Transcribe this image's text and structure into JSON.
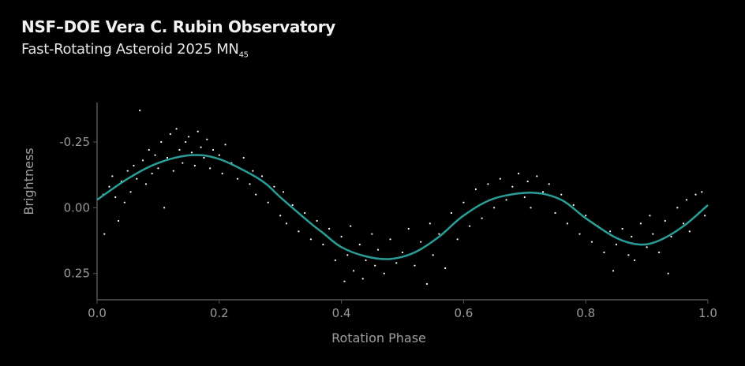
{
  "header": {
    "title": "NSF–DOE Vera C. Rubin Observatory",
    "subtitle_main": "Fast-Rotating Asteroid 2025 MN",
    "subtitle_sub": "45"
  },
  "chart_data": {
    "type": "scatter",
    "xlabel": "Rotation Phase",
    "ylabel": "Brightness",
    "xlim": [
      0.0,
      1.0
    ],
    "ylim": [
      0.35,
      -0.4
    ],
    "y_inverted": true,
    "xticks": [
      "0.0",
      "0.2",
      "0.4",
      "0.6",
      "0.8",
      "1.0"
    ],
    "xtick_values": [
      0.0,
      0.2,
      0.4,
      0.6,
      0.8,
      1.0
    ],
    "yticks": [
      "-0.25",
      "0.00",
      "0.25"
    ],
    "ytick_values": [
      -0.25,
      0.0,
      0.25
    ],
    "grid": false,
    "colors": {
      "points": "#ffffff",
      "fit_curve": "#2a9d98",
      "axes": "#555555",
      "background": "#000000"
    },
    "fit_curve": [
      [
        0.0,
        -0.03
      ],
      [
        0.05,
        -0.11
      ],
      [
        0.1,
        -0.17
      ],
      [
        0.155,
        -0.2
      ],
      [
        0.2,
        -0.185
      ],
      [
        0.25,
        -0.13
      ],
      [
        0.277,
        -0.09
      ],
      [
        0.3,
        -0.04
      ],
      [
        0.35,
        0.06
      ],
      [
        0.37,
        0.096
      ],
      [
        0.4,
        0.15
      ],
      [
        0.44,
        0.185
      ],
      [
        0.48,
        0.195
      ],
      [
        0.52,
        0.17
      ],
      [
        0.56,
        0.11
      ],
      [
        0.6,
        0.03
      ],
      [
        0.65,
        -0.035
      ],
      [
        0.713,
        -0.057
      ],
      [
        0.76,
        -0.03
      ],
      [
        0.8,
        0.04
      ],
      [
        0.85,
        0.115
      ],
      [
        0.888,
        0.14
      ],
      [
        0.92,
        0.125
      ],
      [
        0.96,
        0.07
      ],
      [
        1.0,
        -0.01
      ]
    ],
    "points": [
      [
        0.01,
        -0.05
      ],
      [
        0.012,
        0.1
      ],
      [
        0.02,
        -0.08
      ],
      [
        0.025,
        -0.12
      ],
      [
        0.03,
        -0.04
      ],
      [
        0.035,
        0.05
      ],
      [
        0.04,
        -0.1
      ],
      [
        0.045,
        -0.02
      ],
      [
        0.05,
        -0.14
      ],
      [
        0.055,
        -0.06
      ],
      [
        0.06,
        -0.16
      ],
      [
        0.065,
        -0.11
      ],
      [
        0.07,
        -0.37
      ],
      [
        0.075,
        -0.18
      ],
      [
        0.08,
        -0.09
      ],
      [
        0.085,
        -0.22
      ],
      [
        0.09,
        -0.13
      ],
      [
        0.095,
        -0.2
      ],
      [
        0.1,
        -0.15
      ],
      [
        0.105,
        -0.25
      ],
      [
        0.11,
        0.0
      ],
      [
        0.115,
        -0.19
      ],
      [
        0.12,
        -0.28
      ],
      [
        0.125,
        -0.14
      ],
      [
        0.13,
        -0.3
      ],
      [
        0.135,
        -0.22
      ],
      [
        0.14,
        -0.17
      ],
      [
        0.145,
        -0.25
      ],
      [
        0.15,
        -0.27
      ],
      [
        0.155,
        -0.21
      ],
      [
        0.16,
        -0.16
      ],
      [
        0.165,
        -0.29
      ],
      [
        0.17,
        -0.23
      ],
      [
        0.175,
        -0.19
      ],
      [
        0.18,
        -0.26
      ],
      [
        0.185,
        -0.15
      ],
      [
        0.19,
        -0.22
      ],
      [
        0.2,
        -0.2
      ],
      [
        0.205,
        -0.13
      ],
      [
        0.21,
        -0.24
      ],
      [
        0.22,
        -0.17
      ],
      [
        0.23,
        -0.11
      ],
      [
        0.24,
        -0.19
      ],
      [
        0.25,
        -0.09
      ],
      [
        0.255,
        -0.14
      ],
      [
        0.26,
        -0.05
      ],
      [
        0.27,
        -0.12
      ],
      [
        0.28,
        -0.02
      ],
      [
        0.29,
        -0.08
      ],
      [
        0.3,
        0.03
      ],
      [
        0.305,
        -0.06
      ],
      [
        0.31,
        0.06
      ],
      [
        0.32,
        -0.01
      ],
      [
        0.33,
        0.09
      ],
      [
        0.34,
        0.02
      ],
      [
        0.35,
        0.12
      ],
      [
        0.36,
        0.05
      ],
      [
        0.37,
        0.14
      ],
      [
        0.38,
        0.08
      ],
      [
        0.39,
        0.2
      ],
      [
        0.4,
        0.11
      ],
      [
        0.405,
        0.28
      ],
      [
        0.41,
        0.18
      ],
      [
        0.415,
        0.07
      ],
      [
        0.42,
        0.24
      ],
      [
        0.43,
        0.14
      ],
      [
        0.435,
        0.27
      ],
      [
        0.44,
        0.2
      ],
      [
        0.45,
        0.1
      ],
      [
        0.455,
        0.22
      ],
      [
        0.46,
        0.16
      ],
      [
        0.47,
        0.25
      ],
      [
        0.48,
        0.12
      ],
      [
        0.49,
        0.21
      ],
      [
        0.5,
        0.17
      ],
      [
        0.51,
        0.08
      ],
      [
        0.52,
        0.22
      ],
      [
        0.53,
        0.13
      ],
      [
        0.54,
        0.29
      ],
      [
        0.545,
        0.06
      ],
      [
        0.55,
        0.18
      ],
      [
        0.56,
        0.1
      ],
      [
        0.57,
        0.23
      ],
      [
        0.58,
        0.02
      ],
      [
        0.59,
        0.12
      ],
      [
        0.6,
        -0.02
      ],
      [
        0.61,
        0.07
      ],
      [
        0.62,
        -0.07
      ],
      [
        0.63,
        0.04
      ],
      [
        0.64,
        -0.09
      ],
      [
        0.65,
        0.0
      ],
      [
        0.66,
        -0.11
      ],
      [
        0.67,
        -0.03
      ],
      [
        0.68,
        -0.08
      ],
      [
        0.69,
        -0.13
      ],
      [
        0.7,
        -0.04
      ],
      [
        0.705,
        -0.1
      ],
      [
        0.71,
        0.0
      ],
      [
        0.72,
        -0.12
      ],
      [
        0.73,
        -0.06
      ],
      [
        0.74,
        -0.09
      ],
      [
        0.75,
        0.02
      ],
      [
        0.76,
        -0.05
      ],
      [
        0.77,
        0.06
      ],
      [
        0.78,
        -0.01
      ],
      [
        0.79,
        0.1
      ],
      [
        0.8,
        0.03
      ],
      [
        0.81,
        0.13
      ],
      [
        0.82,
        0.07
      ],
      [
        0.83,
        0.17
      ],
      [
        0.84,
        0.09
      ],
      [
        0.845,
        0.24
      ],
      [
        0.85,
        0.14
      ],
      [
        0.86,
        0.08
      ],
      [
        0.87,
        0.18
      ],
      [
        0.875,
        0.11
      ],
      [
        0.88,
        0.2
      ],
      [
        0.89,
        0.06
      ],
      [
        0.9,
        0.15
      ],
      [
        0.905,
        0.03
      ],
      [
        0.91,
        0.1
      ],
      [
        0.92,
        0.17
      ],
      [
        0.93,
        0.05
      ],
      [
        0.935,
        0.25
      ],
      [
        0.94,
        0.11
      ],
      [
        0.95,
        0.0
      ],
      [
        0.96,
        0.06
      ],
      [
        0.965,
        -0.03
      ],
      [
        0.97,
        0.09
      ],
      [
        0.98,
        -0.05
      ],
      [
        0.985,
        0.02
      ],
      [
        0.99,
        -0.06
      ],
      [
        0.995,
        0.03
      ]
    ]
  }
}
